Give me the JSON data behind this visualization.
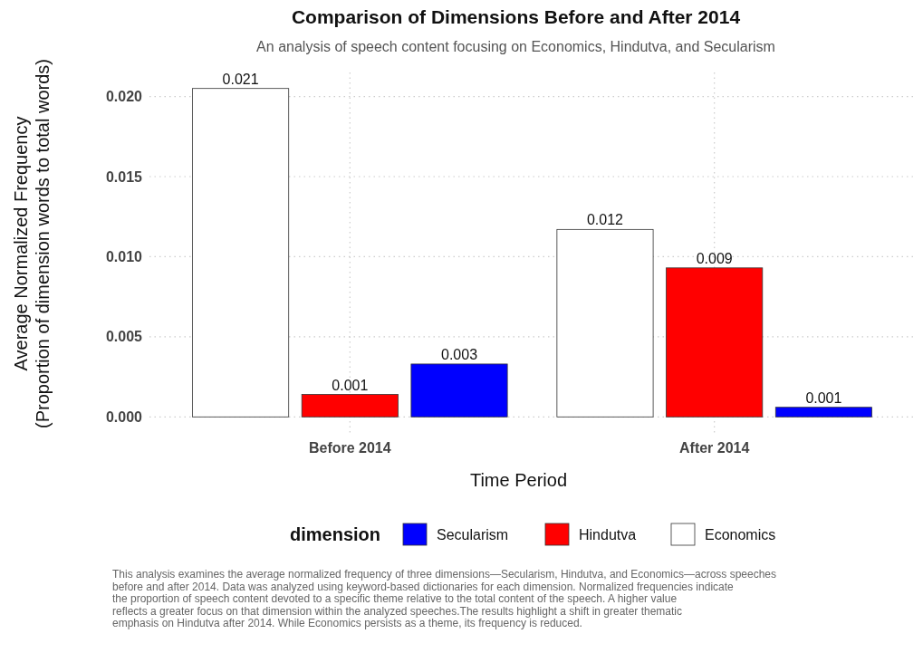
{
  "chart_data": {
    "type": "bar",
    "title": "Comparison of Dimensions Before and After 2014",
    "subtitle": "An analysis of speech content focusing on Economics, Hindutva, and Secularism",
    "xlabel": "Time Period",
    "ylabel": "Average Normalized Frequency\n(Proportion of dimension words to total words)",
    "legend_title": "dimension",
    "categories": [
      "Before 2014",
      "After 2014"
    ],
    "series": [
      {
        "name": "Economics",
        "color": "#ffffff",
        "values": [
          0.0205,
          0.0117
        ],
        "value_labels": [
          "0.021",
          "0.012"
        ]
      },
      {
        "name": "Hindutva",
        "color": "#ff0000",
        "values": [
          0.0014,
          0.0093
        ],
        "value_labels": [
          "0.001",
          "0.009"
        ]
      },
      {
        "name": "Secularism",
        "color": "#0000ff",
        "values": [
          0.0033,
          0.0006
        ],
        "value_labels": [
          "0.003",
          "0.001"
        ]
      }
    ],
    "ylim": [
      -0.001,
      0.0215
    ],
    "yticks": [
      {
        "value": 0,
        "label": "0.000"
      },
      {
        "value": 0.005,
        "label": "0.005"
      },
      {
        "value": 0.01,
        "label": "0.010"
      },
      {
        "value": 0.015,
        "label": "0.015"
      },
      {
        "value": 0.02,
        "label": "0.020"
      }
    ],
    "grid": true,
    "legend": "bottom",
    "annotations": [
      "This analysis examines the average normalized frequency of three dimensions—Secularism, Hindutva, and Economics—across speeches before and after 2014. Data was analyzed using keyword-based dictionaries for each dimension. Normalized frequencies indicate the proportion of speech content devoted to a specific theme relative to the total content of the speech. A higher value reflects a greater focus on that dimension within the analyzed speeches.The results highlight a shift in greater thematic emphasis on Hindutva after 2014.  While Economics persists as a theme, its frequency is reduced."
    ]
  }
}
